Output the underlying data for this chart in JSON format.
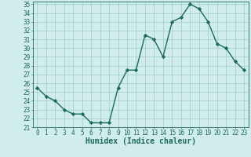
{
  "x": [
    0,
    1,
    2,
    3,
    4,
    5,
    6,
    7,
    8,
    9,
    10,
    11,
    12,
    13,
    14,
    15,
    16,
    17,
    18,
    19,
    20,
    21,
    22,
    23
  ],
  "y": [
    25.5,
    24.5,
    24.0,
    23.0,
    22.5,
    22.5,
    21.5,
    21.5,
    21.5,
    25.5,
    27.5,
    27.5,
    31.5,
    31.0,
    29.0,
    33.0,
    33.5,
    35.0,
    34.5,
    33.0,
    30.5,
    30.0,
    28.5,
    27.5
  ],
  "line_color": "#1a6b5a",
  "marker": "D",
  "marker_size": 2.2,
  "bg_color": "#d0ecec",
  "grid_color": "#a0cccc",
  "xlabel": "Humidex (Indice chaleur)",
  "ylim": [
    21,
    35
  ],
  "xlim": [
    -0.5,
    23.5
  ],
  "yticks": [
    21,
    22,
    23,
    24,
    25,
    26,
    27,
    28,
    29,
    30,
    31,
    32,
    33,
    34,
    35
  ],
  "xticks": [
    0,
    1,
    2,
    3,
    4,
    5,
    6,
    7,
    8,
    9,
    10,
    11,
    12,
    13,
    14,
    15,
    16,
    17,
    18,
    19,
    20,
    21,
    22,
    23
  ],
  "tick_label_fontsize": 5.5,
  "xlabel_fontsize": 7.0,
  "tick_color": "#1a6b5a",
  "linewidth": 1.0
}
